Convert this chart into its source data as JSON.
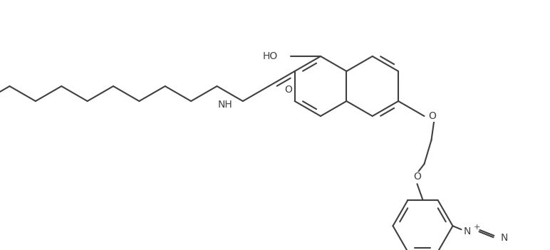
{
  "bg_color": "#ffffff",
  "line_color": "#404040",
  "lw": 1.5,
  "figsize": [
    7.72,
    3.51
  ],
  "dpi": 100,
  "xlim": [
    0.0,
    7.72
  ],
  "ylim": [
    0.0,
    3.51
  ]
}
